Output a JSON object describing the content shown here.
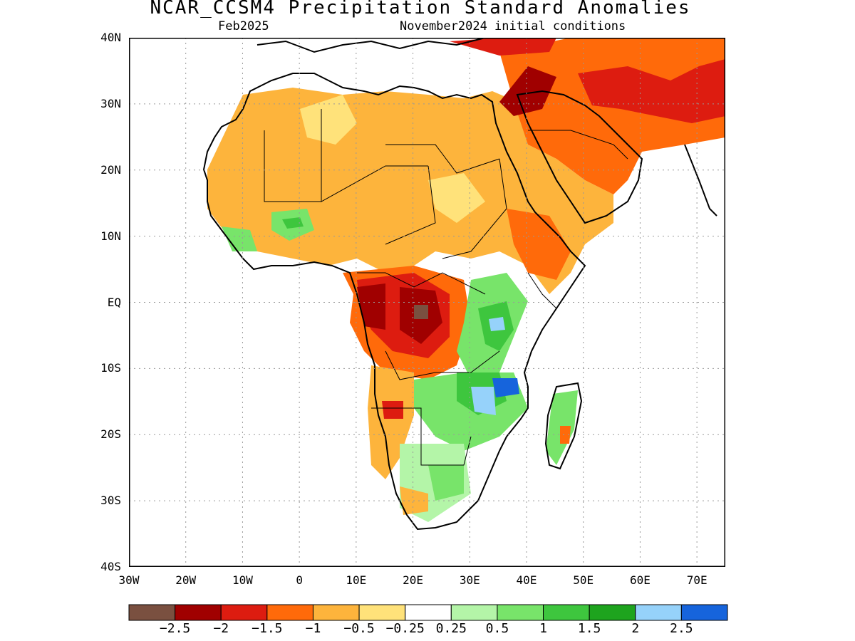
{
  "title": "NCAR_CCSM4 Precipitation Standard Anomalies",
  "subtitle_left": "Feb2025",
  "subtitle_right": "November2024 initial conditions",
  "map": {
    "lon_range": [
      -30,
      75
    ],
    "lat_range": [
      -40,
      40
    ],
    "lat_labels": [
      "40N",
      "30N",
      "20N",
      "10N",
      "EQ",
      "10S",
      "20S",
      "30S",
      "40S"
    ],
    "lat_values": [
      40,
      30,
      20,
      10,
      0,
      -10,
      -20,
      -30,
      -40
    ],
    "lon_labels": [
      "30W",
      "20W",
      "10W",
      "0",
      "10E",
      "20E",
      "30E",
      "40E",
      "50E",
      "60E",
      "70E"
    ],
    "lon_values": [
      -30,
      -20,
      -10,
      0,
      10,
      20,
      30,
      40,
      50,
      60,
      70
    ],
    "grid": "dotted"
  },
  "legend": {
    "colors": [
      "#7a5040",
      "#a00000",
      "#dd1c10",
      "#ff6a0a",
      "#fdb43c",
      "#ffe27a",
      "#ffffff",
      "#b4f5a8",
      "#78e46a",
      "#3ec63e",
      "#1ea41e",
      "#96d2fa",
      "#1664dc"
    ],
    "labels": [
      "−2.5",
      "−2",
      "−1.5",
      "−1",
      "−0.5",
      "−0.25",
      "0.25",
      "0.5",
      "1",
      "1.5",
      "2",
      "2.5"
    ]
  }
}
